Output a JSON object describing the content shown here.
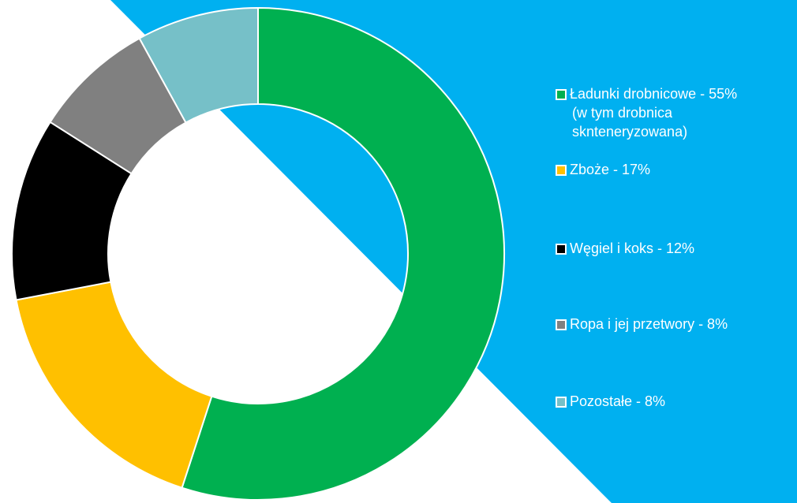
{
  "chart_data": {
    "type": "donut",
    "categories": [
      [
        "Ładunki drobnicowe - 55%",
        "(w tym drobnica",
        "sknteneryzowana)"
      ],
      "Zboże - 17%",
      "Węgiel i koks - 12%",
      "Ropa i jej przetwory - 8%",
      "Pozostałe - 8%"
    ],
    "values": [
      55,
      17,
      12,
      8,
      8
    ],
    "colors": [
      "#00b050",
      "#ffc000",
      "#000000",
      "#808080",
      "#76c0c8"
    ]
  }
}
